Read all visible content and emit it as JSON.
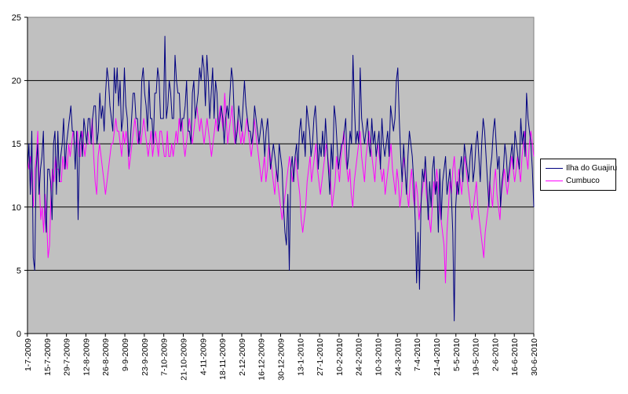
{
  "chart_data": {
    "type": "line",
    "title": "",
    "xlabel": "",
    "ylabel": "",
    "ylim": [
      0,
      25
    ],
    "yticks": [
      0,
      5,
      10,
      15,
      20,
      25
    ],
    "grid": "horizontal major gridlines",
    "plot_background": "#C0C0C0",
    "legend_position": "right",
    "x_tick_labels": [
      "1-7-2009",
      "15-7-2009",
      "29-7-2009",
      "12-8-2009",
      "26-8-2009",
      "9-9-2009",
      "23-9-2009",
      "7-10-2009",
      "21-10-2009",
      "4-11-2009",
      "18-11-2009",
      "2-12-2009",
      "16-12-2009",
      "30-12-2009",
      "13-1-2010",
      "27-1-2010",
      "10-2-2010",
      "24-2-2010",
      "10-3-2010",
      "24-3-2010",
      "7-4-2010",
      "21-4-2010",
      "5-5-2010",
      "19-5-2010",
      "2-6-2010",
      "16-6-2010",
      "30-6-2010"
    ],
    "series": [
      {
        "name": "Ilha do Guajiru",
        "color": "#000080",
        "values": [
          13.0,
          15.0,
          11.0,
          16.0,
          6.0,
          5.0,
          13.0,
          15.0,
          11.0,
          13.0,
          14.0,
          16.0,
          10.0,
          8.0,
          13.0,
          13.0,
          12.0,
          9.0,
          15.0,
          16.0,
          11.0,
          16.0,
          12.0,
          14.0,
          15.0,
          17.0,
          13.0,
          15.0,
          16.0,
          17.0,
          18.0,
          16.0,
          16.0,
          13.0,
          16.0,
          9.0,
          15.0,
          16.0,
          14.0,
          17.0,
          16.0,
          15.0,
          17.0,
          17.0,
          15.0,
          17.0,
          18.0,
          18.0,
          15.0,
          16.0,
          19.0,
          17.0,
          18.0,
          16.0,
          19.0,
          21.0,
          20.0,
          18.0,
          17.0,
          16.0,
          21.0,
          19.0,
          21.0,
          18.0,
          20.0,
          16.0,
          17.0,
          21.0,
          18.0,
          17.0,
          14.0,
          15.0,
          17.0,
          19.0,
          19.0,
          17.0,
          17.0,
          15.0,
          16.0,
          20.0,
          21.0,
          19.0,
          18.0,
          16.0,
          20.0,
          17.0,
          17.0,
          15.0,
          19.0,
          19.0,
          21.0,
          20.0,
          17.0,
          17.0,
          17.0,
          23.5,
          17.0,
          18.0,
          20.0,
          19.0,
          17.0,
          17.0,
          22.0,
          20.0,
          19.0,
          19.0,
          16.0,
          17.0,
          17.0,
          18.0,
          20.0,
          16.0,
          16.0,
          15.0,
          19.0,
          20.0,
          17.0,
          18.0,
          19.0,
          21.0,
          20.0,
          22.0,
          21.0,
          18.0,
          22.0,
          20.0,
          17.0,
          19.0,
          21.0,
          17.0,
          20.0,
          19.0,
          16.0,
          17.0,
          18.0,
          17.0,
          15.0,
          17.0,
          18.0,
          17.0,
          19.0,
          21.0,
          20.0,
          17.0,
          15.0,
          16.0,
          18.0,
          17.0,
          16.0,
          18.0,
          20.0,
          18.0,
          17.0,
          16.0,
          16.0,
          15.0,
          16.0,
          18.0,
          17.0,
          16.0,
          15.0,
          16.0,
          17.0,
          16.0,
          14.0,
          16.0,
          17.0,
          15.0,
          13.0,
          14.0,
          15.0,
          14.0,
          13.0,
          12.0,
          15.0,
          14.0,
          13.0,
          10.0,
          8.0,
          7.0,
          11.0,
          5.0,
          13.0,
          14.0,
          12.0,
          14.0,
          15.0,
          13.0,
          16.0,
          17.0,
          15.0,
          16.0,
          14.0,
          18.0,
          17.0,
          16.0,
          14.0,
          15.0,
          17.0,
          18.0,
          16.0,
          13.0,
          15.0,
          14.0,
          16.0,
          14.0,
          17.0,
          15.0,
          13.0,
          11.0,
          15.0,
          13.0,
          18.0,
          17.0,
          15.0,
          13.0,
          14.0,
          15.0,
          15.0,
          16.0,
          17.0,
          13.0,
          14.0,
          16.0,
          15.0,
          22.0,
          18.0,
          15.0,
          16.0,
          15.0,
          21.0,
          17.0,
          16.0,
          15.0,
          16.0,
          17.0,
          15.0,
          14.0,
          17.0,
          15.0,
          16.0,
          14.0,
          15.0,
          16.0,
          13.0,
          17.0,
          15.0,
          14.0,
          15.0,
          16.0,
          14.0,
          18.0,
          17.0,
          16.0,
          17.0,
          20.0,
          21.0,
          17.0,
          14.0,
          12.0,
          15.0,
          13.0,
          11.0,
          14.0,
          16.0,
          15.0,
          14.0,
          12.0,
          9.0,
          4.0,
          8.0,
          3.5,
          10.0,
          13.0,
          12.0,
          14.0,
          12.0,
          9.0,
          12.0,
          10.0,
          13.0,
          14.0,
          11.0,
          12.0,
          8.0,
          13.0,
          9.0,
          12.0,
          13.0,
          14.0,
          11.0,
          12.0,
          13.0,
          11.0,
          8.0,
          1.0,
          10.0,
          12.0,
          11.0,
          13.0,
          14.0,
          12.0,
          15.0,
          14.0,
          13.0,
          12.0,
          14.0,
          15.0,
          12.0,
          13.0,
          15.0,
          16.0,
          14.0,
          12.0,
          15.0,
          17.0,
          16.0,
          14.0,
          12.0,
          10.0,
          13.0,
          14.0,
          16.0,
          17.0,
          15.0,
          13.0,
          14.0,
          10.0,
          12.0,
          13.0,
          15.0,
          14.0,
          12.0,
          13.0,
          14.0,
          15.0,
          13.0,
          16.0,
          15.0,
          14.0,
          13.0,
          17.0,
          15.0,
          16.0,
          14.0,
          19.0,
          17.0,
          16.0,
          15.0,
          13.0,
          10.0
        ]
      },
      {
        "name": "Cumbuco",
        "color": "#FF00FF",
        "values": [
          14.0,
          13.0,
          14.0,
          12.0,
          10.0,
          13.0,
          14.0,
          16.0,
          12.0,
          9.0,
          10.0,
          8.0,
          11.0,
          9.0,
          6.0,
          7.0,
          11.0,
          13.0,
          12.0,
          14.0,
          13.0,
          13.0,
          12.0,
          12.0,
          14.0,
          13.0,
          14.0,
          13.0,
          15.0,
          14.0,
          15.0,
          16.0,
          15.0,
          15.0,
          16.0,
          14.0,
          14.0,
          16.0,
          15.0,
          14.0,
          15.0,
          16.0,
          15.0,
          15.0,
          17.0,
          14.0,
          12.0,
          11.0,
          14.0,
          15.0,
          14.0,
          13.0,
          12.0,
          11.0,
          12.0,
          13.0,
          14.0,
          15.0,
          15.0,
          16.0,
          17.0,
          16.0,
          16.0,
          15.0,
          14.0,
          16.0,
          15.0,
          16.0,
          15.0,
          13.0,
          14.0,
          15.0,
          16.0,
          17.0,
          16.0,
          15.0,
          16.0,
          15.0,
          16.0,
          17.0,
          16.0,
          15.0,
          14.0,
          15.0,
          16.0,
          14.0,
          15.0,
          16.0,
          15.0,
          14.0,
          16.0,
          16.0,
          15.0,
          14.0,
          14.0,
          16.0,
          14.0,
          14.0,
          15.0,
          14.0,
          15.0,
          16.0,
          15.0,
          17.0,
          16.0,
          17.0,
          15.0,
          14.0,
          15.0,
          16.0,
          17.0,
          16.0,
          15.0,
          16.0,
          17.0,
          18.0,
          17.0,
          16.0,
          17.0,
          16.0,
          15.0,
          16.0,
          17.0,
          16.0,
          15.0,
          14.0,
          15.0,
          16.0,
          17.0,
          16.0,
          17.0,
          18.0,
          17.0,
          16.0,
          19.0,
          17.0,
          15.0,
          16.0,
          17.0,
          18.0,
          16.0,
          15.0,
          16.0,
          17.0,
          16.0,
          15.0,
          16.0,
          15.0,
          16.0,
          17.0,
          16.0,
          15.0,
          14.0,
          15.0,
          17.0,
          16.0,
          15.0,
          14.0,
          13.0,
          12.0,
          13.0,
          14.0,
          12.0,
          13.0,
          15.0,
          14.0,
          13.0,
          12.0,
          11.0,
          13.0,
          12.0,
          11.0,
          10.0,
          9.0,
          10.0,
          11.0,
          12.0,
          13.0,
          14.0,
          13.0,
          12.0,
          13.0,
          14.0,
          13.0,
          12.0,
          11.0,
          9.0,
          8.0,
          9.0,
          10.0,
          12.0,
          13.0,
          14.0,
          12.0,
          13.0,
          14.0,
          15.0,
          13.0,
          12.0,
          11.0,
          12.0,
          13.0,
          14.0,
          15.0,
          14.0,
          13.0,
          12.0,
          10.0,
          11.0,
          12.0,
          14.0,
          13.0,
          12.0,
          14.0,
          15.0,
          16.0,
          14.0,
          13.0,
          12.0,
          13.0,
          11.0,
          10.0,
          12.0,
          13.0,
          14.0,
          15.0,
          16.0,
          14.0,
          13.0,
          12.0,
          14.0,
          15.0,
          16.0,
          15.0,
          14.0,
          13.0,
          12.0,
          14.0,
          15.0,
          14.0,
          13.0,
          12.0,
          13.0,
          11.0,
          12.0,
          13.0,
          14.0,
          15.0,
          13.0,
          12.0,
          11.0,
          13.0,
          12.0,
          10.0,
          11.0,
          13.0,
          14.0,
          12.0,
          11.0,
          10.0,
          12.0,
          13.0,
          11.0,
          10.0,
          12.0,
          11.0,
          9.0,
          10.0,
          11.0,
          12.0,
          13.0,
          11.0,
          10.0,
          9.0,
          8.0,
          10.0,
          12.0,
          11.0,
          13.0,
          12.0,
          10.0,
          9.0,
          8.0,
          7.0,
          4.0,
          8.0,
          10.0,
          12.0,
          11.0,
          13.0,
          14.0,
          12.0,
          11.0,
          13.0,
          12.0,
          11.0,
          13.0,
          14.0,
          13.0,
          12.0,
          11.0,
          10.0,
          9.0,
          10.0,
          11.0,
          12.0,
          10.0,
          9.0,
          8.0,
          7.0,
          6.0,
          8.0,
          9.0,
          10.0,
          12.0,
          11.0,
          10.0,
          12.0,
          13.0,
          11.0,
          10.0,
          9.0,
          11.0,
          12.0,
          13.0,
          12.0,
          11.0,
          12.0,
          13.0,
          14.0,
          13.0,
          12.0,
          13.0,
          14.0,
          13.0,
          12.0,
          14.0,
          15.0,
          16.0,
          14.0,
          13.0,
          15.0,
          16.0,
          15.0,
          14.0
        ]
      }
    ]
  }
}
